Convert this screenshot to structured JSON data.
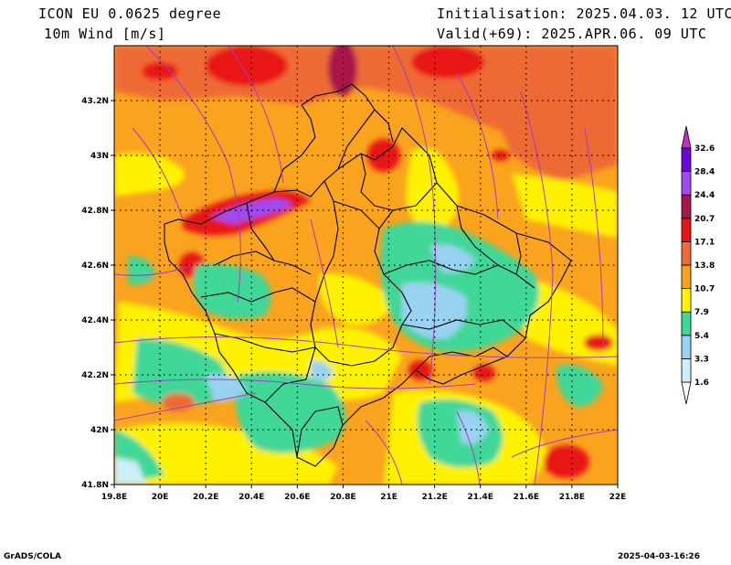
{
  "header": {
    "model": "ICON EU 0.0625 degree",
    "variable": "10m Wind [m/s]",
    "init": "Initialisation: 2025.04.03. 12 UTC",
    "valid": "Valid(+69): 2025.APR.06. 09 UTC"
  },
  "footer": {
    "software": "GrADS/COLA",
    "timestamp": "2025-04-03-16:26"
  },
  "map": {
    "lon_range": [
      19.8,
      22.0
    ],
    "lat_range": [
      41.8,
      43.4
    ],
    "lon_ticks": [
      "19.8E",
      "20E",
      "20.2E",
      "20.4E",
      "20.6E",
      "20.8E",
      "21E",
      "21.2E",
      "21.4E",
      "21.6E",
      "21.8E",
      "22E"
    ],
    "lat_ticks": [
      "41.8N",
      "42N",
      "42.2N",
      "42.4N",
      "42.6N",
      "42.8N",
      "43N",
      "43.2N"
    ],
    "grid": "dotted"
  },
  "colorbar": {
    "levels": [
      "1.6",
      "3.3",
      "5.4",
      "7.9",
      "10.7",
      "13.8",
      "17.1",
      "20.7",
      "24.4",
      "28.4",
      "32.6"
    ],
    "colors": [
      "#ffffff",
      "#cdeffa",
      "#9ad2f2",
      "#40d798",
      "#fff200",
      "#f9a31e",
      "#ee6a36",
      "#e81313",
      "#a8174a",
      "#9d4cf2",
      "#6a08d9",
      "#c72ec7"
    ]
  }
}
